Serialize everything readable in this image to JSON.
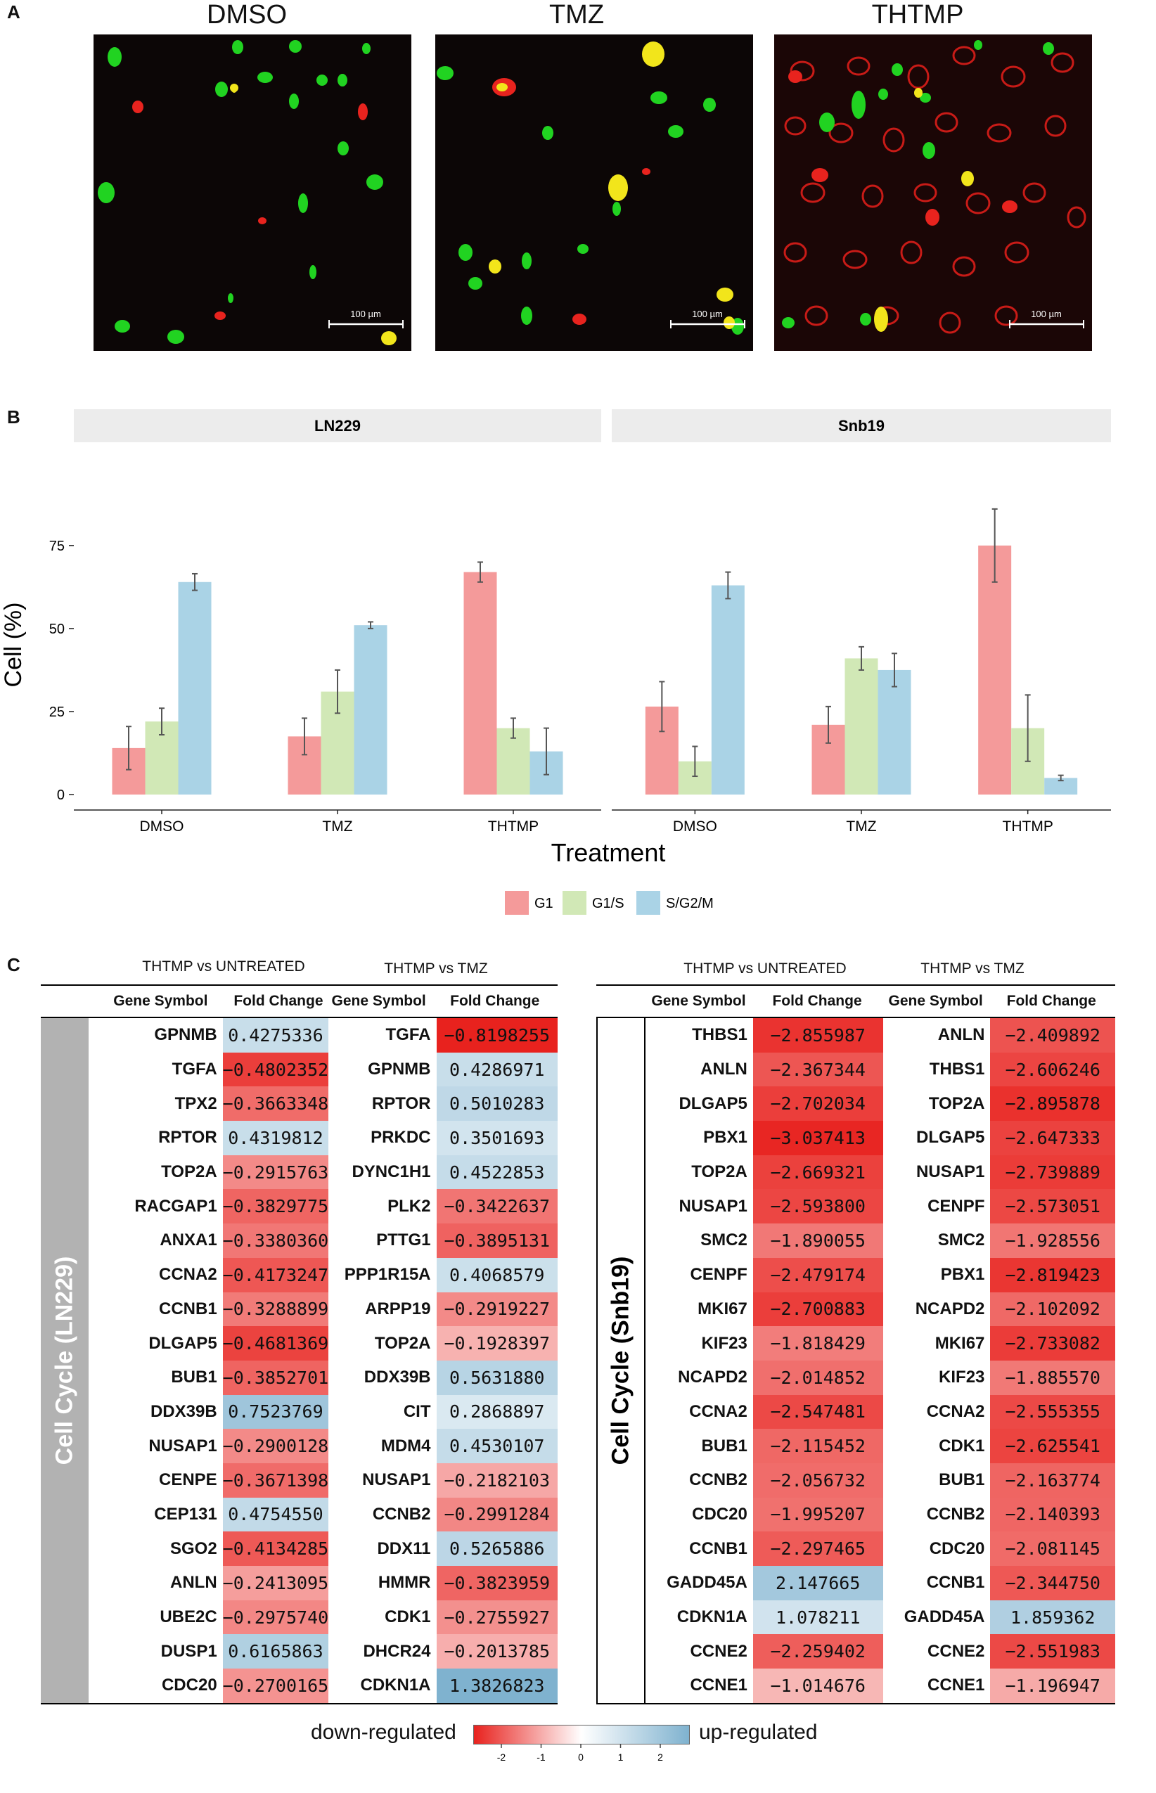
{
  "panel_a": {
    "label": "A",
    "images": [
      {
        "title": "DMSO",
        "scale_bar": "100 µm"
      },
      {
        "title": "TMZ",
        "scale_bar": "100 µm"
      },
      {
        "title": "THTMP",
        "scale_bar": "100 µm"
      }
    ]
  },
  "panel_b_label": "B",
  "panel_c_label": "C",
  "chart_data": {
    "type": "bar",
    "facets": [
      "LN229",
      "Snb19"
    ],
    "categories": [
      "DMSO",
      "TMZ",
      "THTMP"
    ],
    "xlabel": "Treatment",
    "ylabel": "Cell (%)",
    "ylim": [
      0,
      90
    ],
    "yticks": [
      0,
      25,
      50,
      75
    ],
    "legend": [
      {
        "name": "G1",
        "color": "#f49a9a"
      },
      {
        "name": "G1/S",
        "color": "#d1e8b6"
      },
      {
        "name": "S/G2/M",
        "color": "#aad3e6"
      }
    ],
    "series_by_facet": {
      "LN229": {
        "G1": {
          "values": [
            14,
            17.5,
            67
          ],
          "errors": [
            6.5,
            5.5,
            3
          ]
        },
        "G1/S": {
          "values": [
            22,
            31,
            20
          ],
          "errors": [
            4,
            6.5,
            3
          ]
        },
        "S/G2/M": {
          "values": [
            64,
            51,
            13
          ],
          "errors": [
            2.5,
            1,
            7
          ]
        }
      },
      "Snb19": {
        "G1": {
          "values": [
            26.5,
            21,
            75
          ],
          "errors": [
            7.5,
            5.5,
            11
          ]
        },
        "G1/S": {
          "values": [
            10,
            41,
            20
          ],
          "errors": [
            4.5,
            3.5,
            10
          ]
        },
        "S/G2/M": {
          "values": [
            63,
            37.5,
            5
          ],
          "errors": [
            4,
            5,
            0.8
          ]
        }
      }
    }
  },
  "tables": {
    "ln229": {
      "side_label": "Cell Cycle  (LN229)",
      "cmp1_title": "THTMP vs UNTREATED",
      "cmp2_title": "THTMP vs TMZ",
      "col_gene": "Gene Symbol",
      "col_fc": "Fold Change",
      "rows": [
        {
          "g1": "GPNMB",
          "f1": "0.4275336",
          "v1": 0.4275336,
          "g2": "TGFA",
          "f2": "−0.8198255",
          "v2": -0.8198255
        },
        {
          "g1": "TGFA",
          "f1": "−0.4802352",
          "v1": -0.4802352,
          "g2": "GPNMB",
          "f2": "0.4286971",
          "v2": 0.4286971
        },
        {
          "g1": "TPX2",
          "f1": "−0.3663348",
          "v1": -0.3663348,
          "g2": "RPTOR",
          "f2": "0.5010283",
          "v2": 0.5010283
        },
        {
          "g1": "RPTOR",
          "f1": "0.4319812",
          "v1": 0.4319812,
          "g2": "PRKDC",
          "f2": "0.3501693",
          "v2": 0.3501693
        },
        {
          "g1": "TOP2A",
          "f1": "−0.2915763",
          "v1": -0.2915763,
          "g2": "DYNC1H1",
          "f2": "0.4522853",
          "v2": 0.4522853
        },
        {
          "g1": "RACGAP1",
          "f1": "−0.3829775",
          "v1": -0.3829775,
          "g2": "PLK2",
          "f2": "−0.3422637",
          "v2": -0.3422637
        },
        {
          "g1": "ANXA1",
          "f1": "−0.3380360",
          "v1": -0.338036,
          "g2": "PTTG1",
          "f2": "−0.3895131",
          "v2": -0.3895131
        },
        {
          "g1": "CCNA2",
          "f1": "−0.4173247",
          "v1": -0.4173247,
          "g2": "PPP1R15A",
          "f2": "0.4068579",
          "v2": 0.4068579
        },
        {
          "g1": "CCNB1",
          "f1": "−0.3288899",
          "v1": -0.3288899,
          "g2": "ARPP19",
          "f2": "−0.2919227",
          "v2": -0.2919227
        },
        {
          "g1": "DLGAP5",
          "f1": "−0.4681369",
          "v1": -0.4681369,
          "g2": "TOP2A",
          "f2": "−0.1928397",
          "v2": -0.1928397
        },
        {
          "g1": "BUB1",
          "f1": "−0.3852701",
          "v1": -0.3852701,
          "g2": "DDX39B",
          "f2": "0.5631880",
          "v2": 0.563188
        },
        {
          "g1": "DDX39B",
          "f1": "0.7523769",
          "v1": 0.7523769,
          "g2": "CIT",
          "f2": "0.2868897",
          "v2": 0.2868897
        },
        {
          "g1": "NUSAP1",
          "f1": "−0.2900128",
          "v1": -0.2900128,
          "g2": "MDM4",
          "f2": "0.4530107",
          "v2": 0.4530107
        },
        {
          "g1": "CENPE",
          "f1": "−0.3671398",
          "v1": -0.3671398,
          "g2": "NUSAP1",
          "f2": "−0.2182103",
          "v2": -0.2182103
        },
        {
          "g1": "CEP131",
          "f1": "0.4754550",
          "v1": 0.475455,
          "g2": "CCNB2",
          "f2": "−0.2991284",
          "v2": -0.2991284
        },
        {
          "g1": "SGO2",
          "f1": "−0.4134285",
          "v1": -0.4134285,
          "g2": "DDX11",
          "f2": "0.5265886",
          "v2": 0.5265886
        },
        {
          "g1": "ANLN",
          "f1": "−0.2413095",
          "v1": -0.2413095,
          "g2": "HMMR",
          "f2": "−0.3823959",
          "v2": -0.3823959
        },
        {
          "g1": "UBE2C",
          "f1": "−0.2975740",
          "v1": -0.297574,
          "g2": "CDK1",
          "f2": "−0.2755927",
          "v2": -0.2755927
        },
        {
          "g1": "DUSP1",
          "f1": "0.6165863",
          "v1": 0.6165863,
          "g2": "DHCR24",
          "f2": "−0.2013785",
          "v2": -0.2013785
        },
        {
          "g1": "CDC20",
          "f1": "−0.2700165",
          "v1": -0.2700165,
          "g2": "CDKN1A",
          "f2": "1.3826823",
          "v2": 1.3826823
        }
      ]
    },
    "snb19": {
      "side_label": "Cell Cycle  (Snb19)",
      "cmp1_title": "THTMP vs UNTREATED",
      "cmp2_title": "THTMP vs TMZ",
      "col_gene": "Gene Symbol",
      "col_fc": "Fold Change",
      "rows": [
        {
          "g1": "THBS1",
          "f1": "−2.855987",
          "v1": -2.855987,
          "g2": "ANLN",
          "f2": "−2.409892",
          "v2": -2.409892
        },
        {
          "g1": "ANLN",
          "f1": "−2.367344",
          "v1": -2.367344,
          "g2": "THBS1",
          "f2": "−2.606246",
          "v2": -2.606246
        },
        {
          "g1": "DLGAP5",
          "f1": "−2.702034",
          "v1": -2.702034,
          "g2": "TOP2A",
          "f2": "−2.895878",
          "v2": -2.895878
        },
        {
          "g1": "PBX1",
          "f1": "−3.037413",
          "v1": -3.037413,
          "g2": "DLGAP5",
          "f2": "−2.647333",
          "v2": -2.647333
        },
        {
          "g1": "TOP2A",
          "f1": "−2.669321",
          "v1": -2.669321,
          "g2": "NUSAP1",
          "f2": "−2.739889",
          "v2": -2.739889
        },
        {
          "g1": "NUSAP1",
          "f1": "−2.593800",
          "v1": -2.5938,
          "g2": "CENPF",
          "f2": "−2.573051",
          "v2": -2.573051
        },
        {
          "g1": "SMC2",
          "f1": "−1.890055",
          "v1": -1.890055,
          "g2": "SMC2",
          "f2": "−1.928556",
          "v2": -1.928556
        },
        {
          "g1": "CENPF",
          "f1": "−2.479174",
          "v1": -2.479174,
          "g2": "PBX1",
          "f2": "−2.819423",
          "v2": -2.819423
        },
        {
          "g1": "MKI67",
          "f1": "−2.700883",
          "v1": -2.700883,
          "g2": "NCAPD2",
          "f2": "−2.102092",
          "v2": -2.102092
        },
        {
          "g1": "KIF23",
          "f1": "−1.818429",
          "v1": -1.818429,
          "g2": "MKI67",
          "f2": "−2.733082",
          "v2": -2.733082
        },
        {
          "g1": "NCAPD2",
          "f1": "−2.014852",
          "v1": -2.014852,
          "g2": "KIF23",
          "f2": "−1.885570",
          "v2": -1.88557
        },
        {
          "g1": "CCNA2",
          "f1": "−2.547481",
          "v1": -2.547481,
          "g2": "CCNA2",
          "f2": "−2.555355",
          "v2": -2.555355
        },
        {
          "g1": "BUB1",
          "f1": "−2.115452",
          "v1": -2.115452,
          "g2": "CDK1",
          "f2": "−2.625541",
          "v2": -2.625541
        },
        {
          "g1": "CCNB2",
          "f1": "−2.056732",
          "v1": -2.056732,
          "g2": "BUB1",
          "f2": "−2.163774",
          "v2": -2.163774
        },
        {
          "g1": "CDC20",
          "f1": "−1.995207",
          "v1": -1.995207,
          "g2": "CCNB2",
          "f2": "−2.140393",
          "v2": -2.140393
        },
        {
          "g1": "CCNB1",
          "f1": "−2.297465",
          "v1": -2.297465,
          "g2": "CDC20",
          "f2": "−2.081145",
          "v2": -2.081145
        },
        {
          "g1": "GADD45A",
          "f1": "2.147665",
          "v1": 2.147665,
          "g2": "CCNB1",
          "f2": "−2.344750",
          "v2": -2.34475
        },
        {
          "g1": "CDKN1A",
          "f1": "1.078211",
          "v1": 1.078211,
          "g2": "GADD45A",
          "f2": "1.859362",
          "v2": 1.859362
        },
        {
          "g1": "CCNE2",
          "f1": "−2.259402",
          "v1": -2.259402,
          "g2": "CCNE2",
          "f2": "−2.551983",
          "v2": -2.551983
        },
        {
          "g1": "CCNE1",
          "f1": "−1.014676",
          "v1": -1.014676,
          "g2": "CCNE1",
          "f2": "−1.196947",
          "v2": -1.196947
        }
      ]
    }
  },
  "color_legend": {
    "down_label": "down-regulated",
    "up_label": "up-regulated",
    "ticks": [
      "-2",
      "-1",
      "0",
      "1",
      "2"
    ],
    "low_color": "#e8221e",
    "mid_color": "#ffffff",
    "high_color": "#7fb2cf"
  }
}
